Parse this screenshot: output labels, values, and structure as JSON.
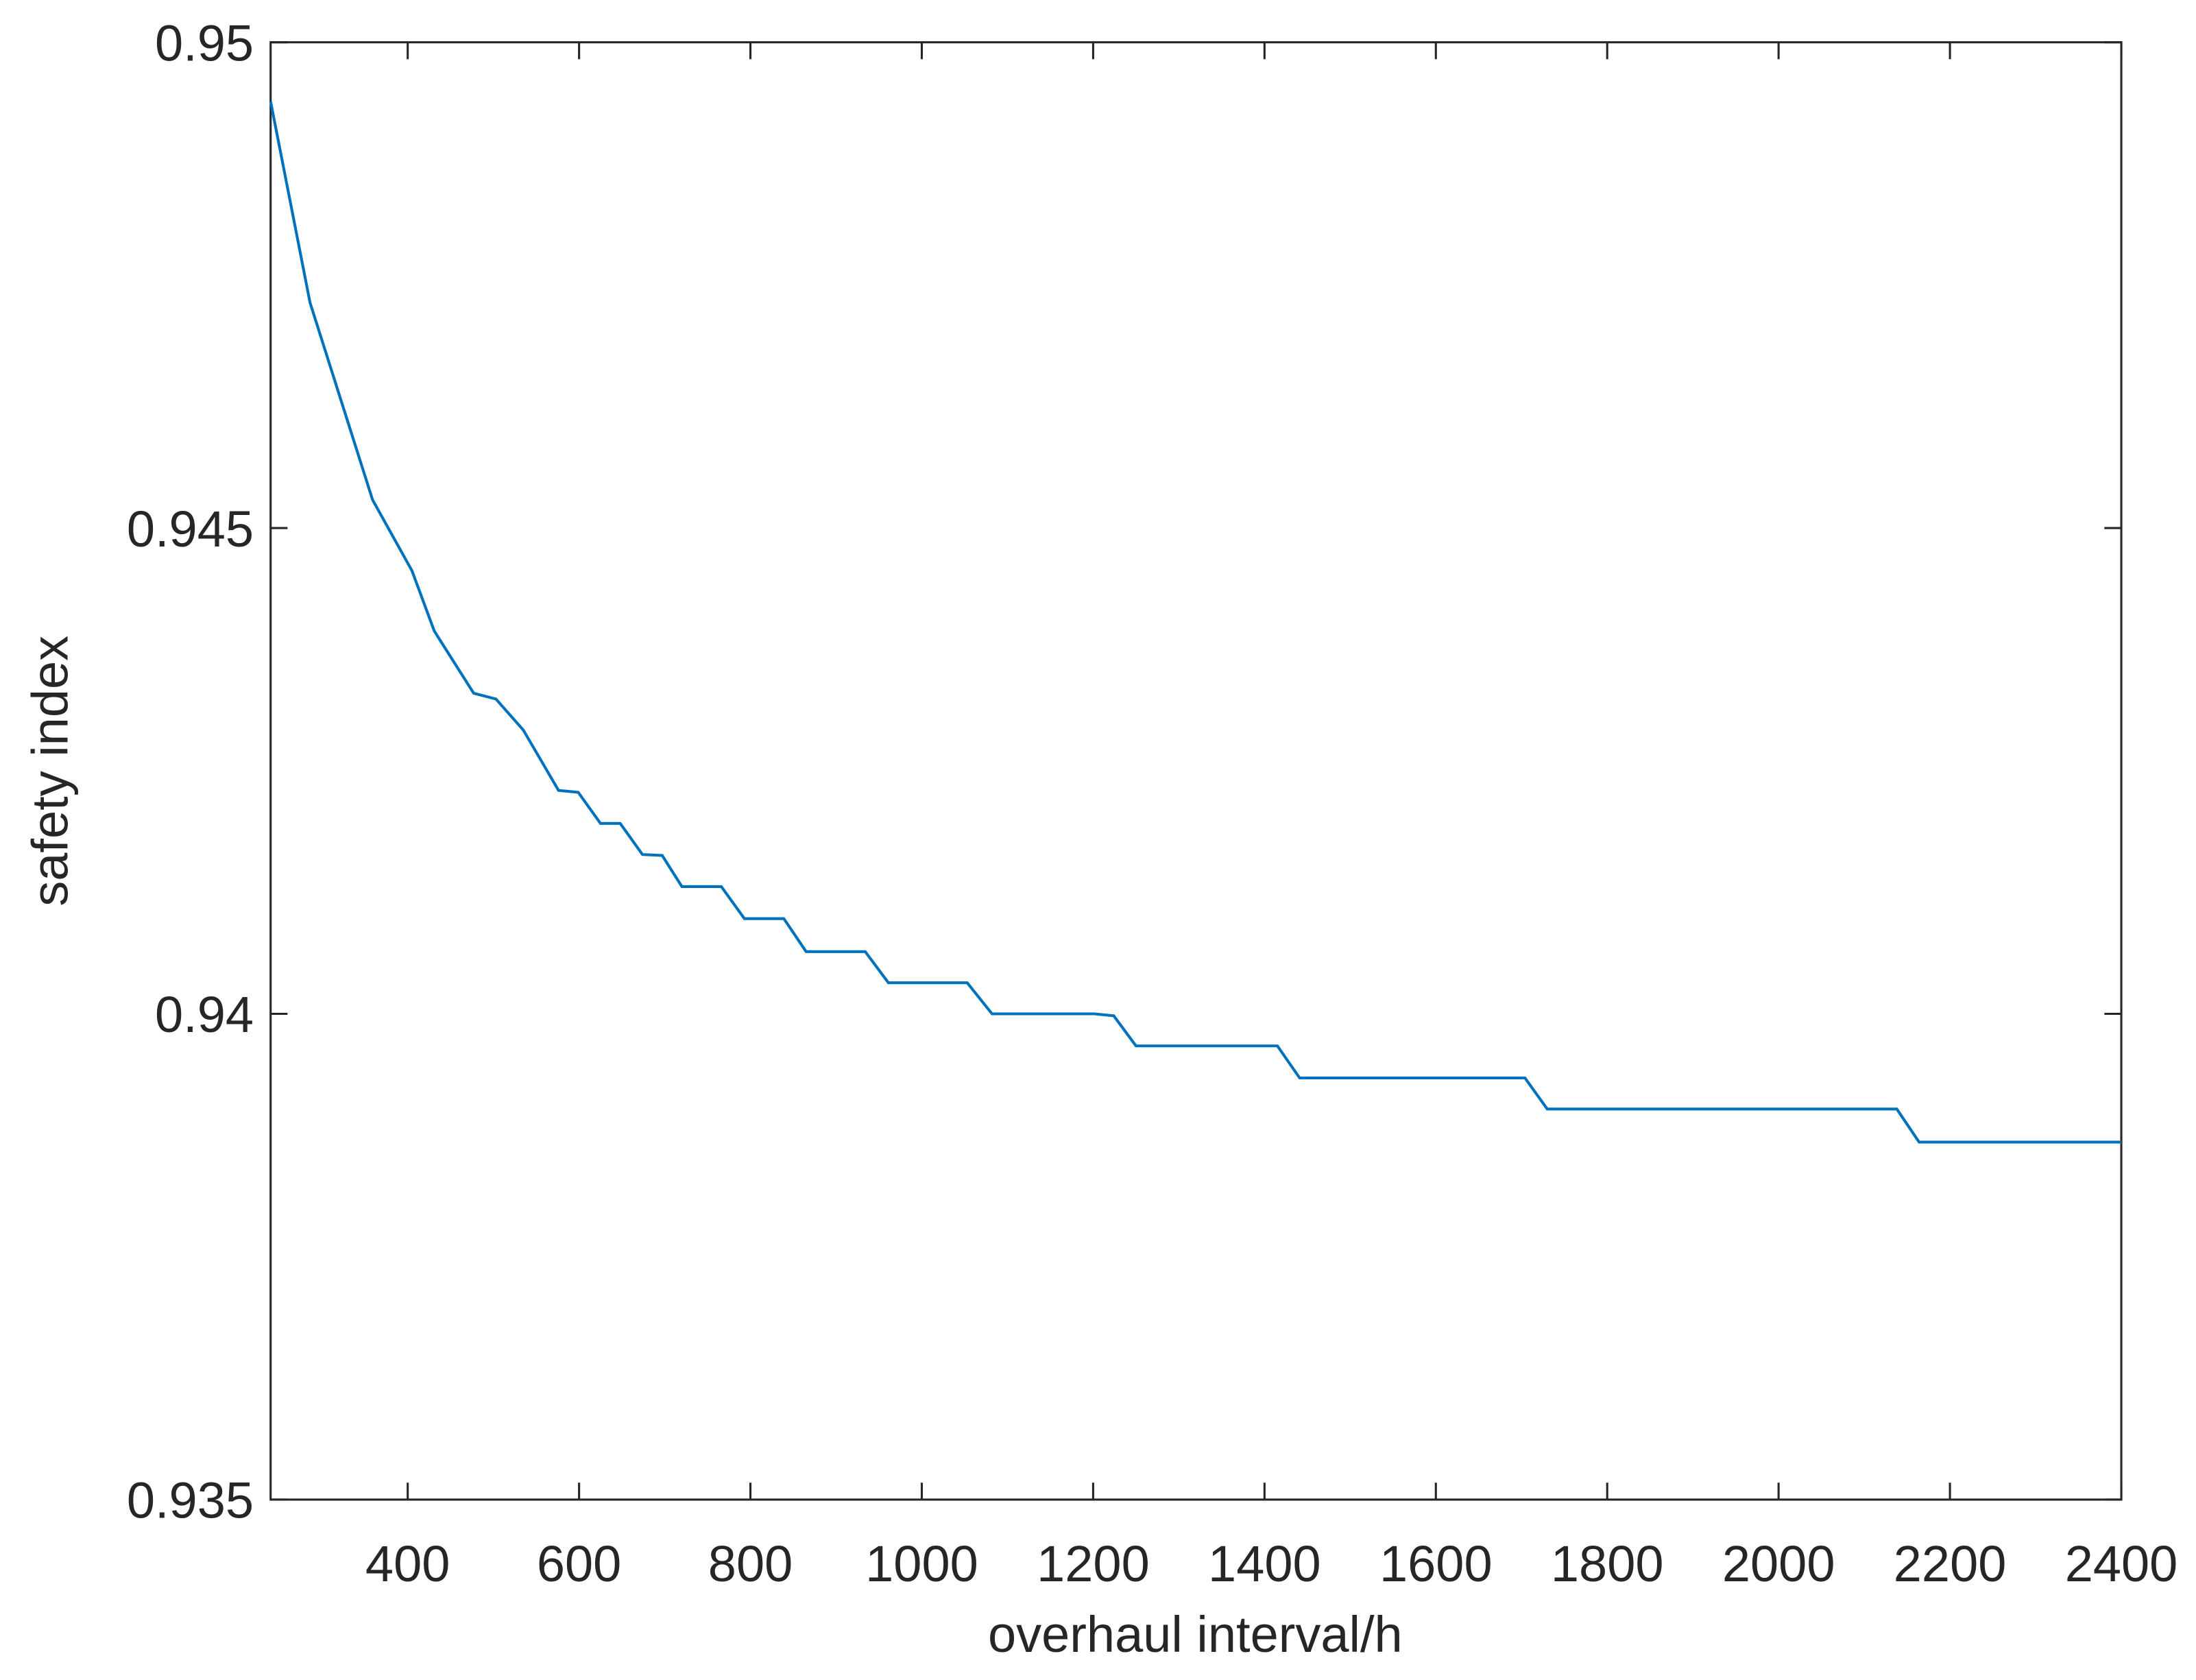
{
  "chart_data": {
    "type": "line",
    "x_label": "overhaul interval/h",
    "y_label": "safety index",
    "x": [
      240,
      286,
      359,
      405,
      431,
      477,
      503,
      535,
      576,
      599,
      625,
      648,
      674,
      697,
      720,
      766,
      793,
      839,
      865,
      934,
      961,
      1053,
      1082,
      1201,
      1224,
      1250,
      1415,
      1441,
      1704,
      1730,
      2138,
      2164,
      2400
    ],
    "series": [
      {
        "color": "#0072bd",
        "values": [
          0.94939,
          0.94732,
          0.94529,
          0.94456,
          0.94394,
          0.9433,
          0.94324,
          0.94292,
          0.9423,
          0.94228,
          0.94196,
          0.94196,
          0.94164,
          0.94163,
          0.94131,
          0.94131,
          0.94098,
          0.94098,
          0.94064,
          0.94064,
          0.94032,
          0.94032,
          0.94,
          0.94,
          0.93998,
          0.93967,
          0.93967,
          0.93934,
          0.93934,
          0.93902,
          0.93902,
          0.93868,
          0.93868
        ]
      }
    ],
    "xlim": [
      240,
      2400
    ],
    "ylim": [
      0.935,
      0.95
    ],
    "xticks": [
      400,
      600,
      800,
      1000,
      1200,
      1400,
      1600,
      1800,
      2000,
      2200,
      2400
    ],
    "yticks": [
      0.935,
      0.94,
      0.945,
      0.95
    ],
    "grid": false
  }
}
